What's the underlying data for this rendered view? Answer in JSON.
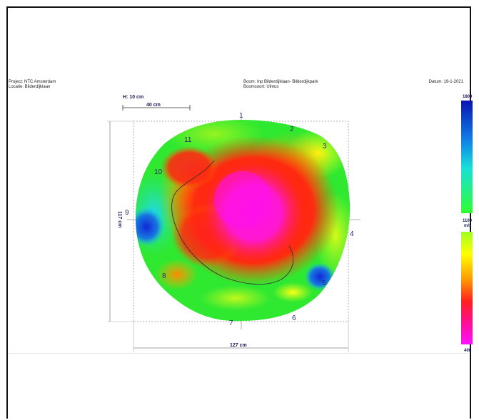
{
  "header": {
    "project": "Project: NTC Amsterdam",
    "location": "Locatie: Bilderdijklaan",
    "tree": "Boom: Inp Bilderdijklaan- Bilderdijkpark",
    "species": "Boomsoort: Ulmus",
    "date": "Datum: 19-1-2021"
  },
  "diagram": {
    "height_label": "H: 10 cm",
    "scale_label": "40 cm",
    "width_label": "127 cm",
    "depth_label": "117 cm",
    "sensor_numbers": [
      "1",
      "2",
      "3",
      "4",
      "5",
      "6",
      "7",
      "8",
      "9",
      "10",
      "11"
    ]
  },
  "legend": {
    "top_max": "1800",
    "top_min": "1100",
    "unit": "m/s",
    "bottom_min": "400"
  },
  "colors": {
    "frame": "#111111",
    "text": "#1a1a55",
    "magenta": "#ff10e0",
    "red": "#ff2020",
    "orange": "#ff9a00",
    "yellow": "#ffff00",
    "green": "#2dee2d",
    "cyan": "#18d8e8",
    "blue": "#1030d0"
  }
}
